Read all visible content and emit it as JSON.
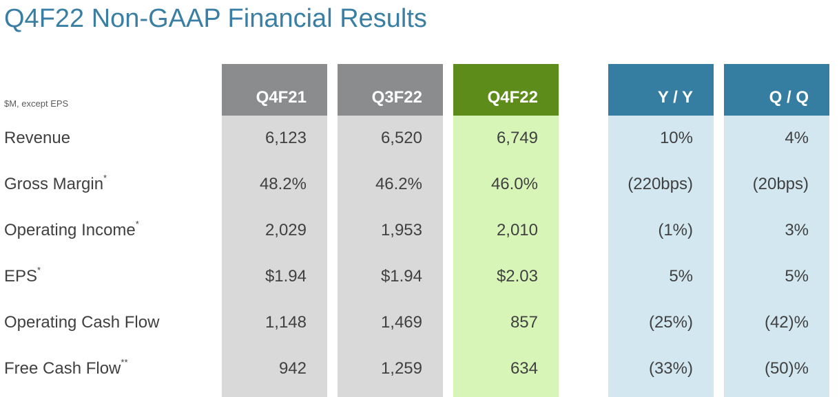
{
  "title": "Q4F22 Non-GAAP Financial Results",
  "units_note": "$M, except EPS",
  "columns": [
    {
      "label": "Q4F21",
      "header_color": "#8a8c8e",
      "body_color": "#d9d9d9"
    },
    {
      "label": "Q3F22",
      "header_color": "#8a8c8e",
      "body_color": "#d9d9d9"
    },
    {
      "label": "Q4F22",
      "header_color": "#5e8c1a",
      "body_color": "#d8f5b8"
    },
    {
      "label": "Y / Y",
      "header_color": "#357ea2",
      "body_color": "#d3e7f1"
    },
    {
      "label": "Q / Q",
      "header_color": "#357ea2",
      "body_color": "#d3e7f1"
    }
  ],
  "rows": [
    {
      "label": "Revenue",
      "marker": "",
      "values": [
        "6,123",
        "6,520",
        "6,749",
        "10%",
        "4%"
      ]
    },
    {
      "label": "Gross Margin",
      "marker": "*",
      "values": [
        "48.2%",
        "46.2%",
        "46.0%",
        "(220bps)",
        "(20bps)"
      ]
    },
    {
      "label": "Operating Income",
      "marker": "*",
      "values": [
        "2,029",
        "1,953",
        "2,010",
        "(1%)",
        "3%"
      ]
    },
    {
      "label": "EPS",
      "marker": "*",
      "values": [
        "$1.94",
        "$1.94",
        "$2.03",
        "5%",
        "5%"
      ]
    },
    {
      "label": "Operating Cash Flow",
      "marker": "",
      "values": [
        "1,148",
        "1,469",
        "857",
        "(25%)",
        "(42)%"
      ]
    },
    {
      "label": "Free Cash Flow",
      "marker": "**",
      "values": [
        "942",
        "1,259",
        "634",
        "(33%)",
        "(50)%"
      ]
    }
  ]
}
